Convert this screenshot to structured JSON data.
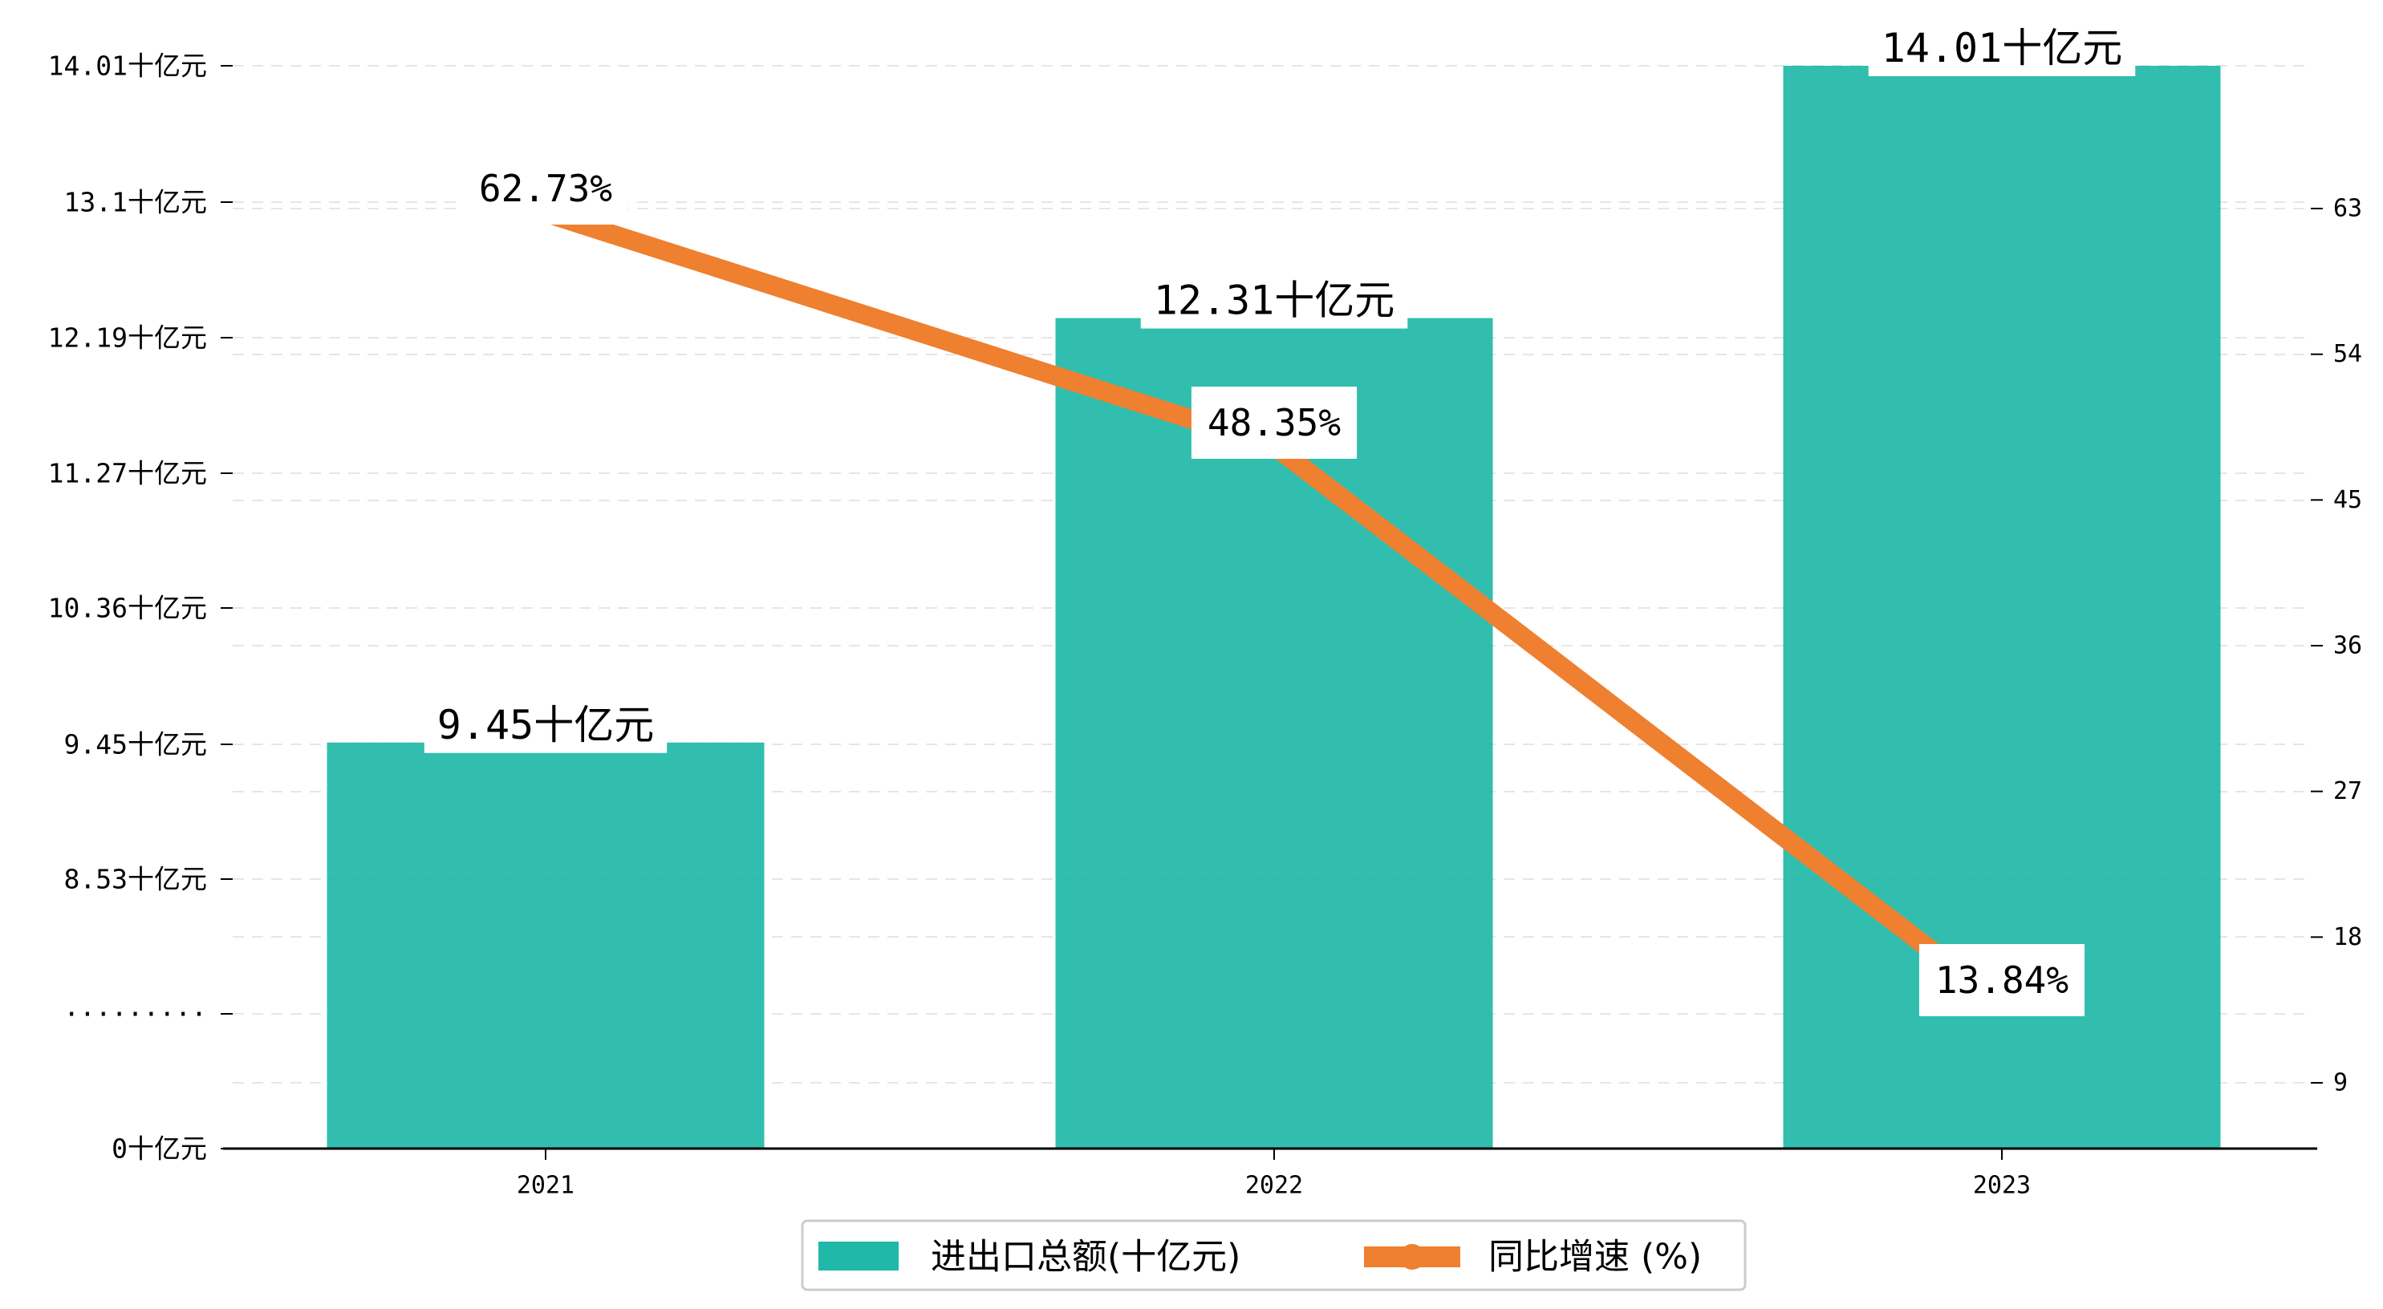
{
  "chart_data": {
    "type": "bar",
    "categories": [
      "2021",
      "2022",
      "2023"
    ],
    "series": [
      {
        "name": "进出口总额(十亿元)",
        "type": "bar",
        "axis": "left",
        "values": [
          9.45,
          12.31,
          14.01
        ],
        "labels": [
          "9.45十亿元",
          "12.31十亿元",
          "14.01十亿元"
        ],
        "color": "#20B8A8"
      },
      {
        "name": "同比增速 (%)",
        "type": "line",
        "axis": "right",
        "values": [
          62.73,
          48.35,
          13.84
        ],
        "labels": [
          "62.73%",
          "48.35%",
          "13.84%"
        ],
        "color": "#EE8030"
      }
    ],
    "left_axis": {
      "ticks": [
        {
          "value": 0,
          "label": "0十亿元"
        },
        {
          "value": 7.62,
          "label": "·········"
        },
        {
          "value": 8.53,
          "label": "8.53十亿元"
        },
        {
          "value": 9.45,
          "label": "9.45十亿元"
        },
        {
          "value": 10.36,
          "label": "10.36十亿元"
        },
        {
          "value": 11.27,
          "label": "11.27十亿元"
        },
        {
          "value": 12.19,
          "label": "12.19十亿元"
        },
        {
          "value": 13.1,
          "label": "13.1十亿元"
        },
        {
          "value": 14.01,
          "label": "14.01十亿元"
        }
      ],
      "broken": true
    },
    "right_axis": {
      "ticks": [
        9,
        18,
        27,
        36,
        45,
        54,
        63
      ],
      "ylim": [
        4.32,
        70.2
      ]
    },
    "grid": true,
    "legend": {
      "position": "bottom-center",
      "items": [
        "进出口总额(十亿元)",
        "同比增速 (%)"
      ]
    }
  }
}
